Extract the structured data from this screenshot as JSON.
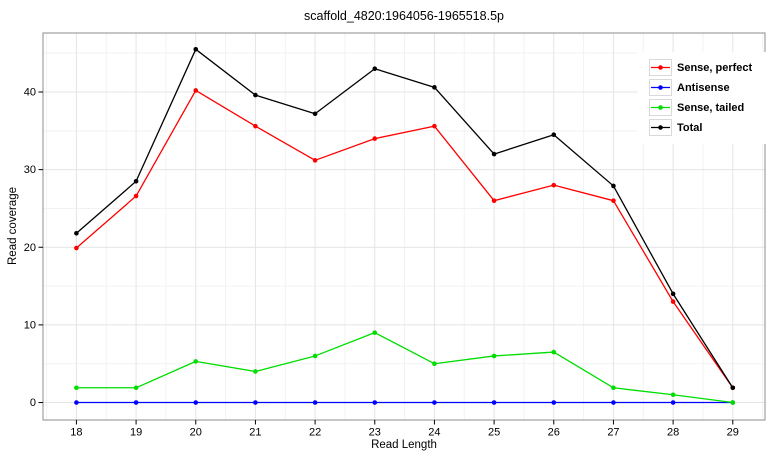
{
  "title": "scaffold_4820:1964056-1965518.5p",
  "axes": {
    "x_label": "Read Length",
    "y_label": "Read coverage",
    "x_tick_labels": [
      "18",
      "19",
      "20",
      "21",
      "22",
      "23",
      "24",
      "25",
      "26",
      "27",
      "28",
      "29"
    ],
    "y_tick_labels": [
      "0",
      "10",
      "20",
      "30",
      "40"
    ]
  },
  "colors": {
    "sense_perfect": "#ff0000",
    "antisense": "#0000ff",
    "sense_tailed": "#00dd00",
    "total": "#000000",
    "panel_border": "#8c8c8c",
    "grid_major": "#e4e4e4",
    "grid_minor": "#f2f2f2",
    "tick": "#000000"
  },
  "chart_data": {
    "type": "line",
    "title": "scaffold_4820:1964056-1965518.5p",
    "xlabel": "Read Length",
    "ylabel": "Read coverage",
    "x": [
      18,
      19,
      20,
      21,
      22,
      23,
      24,
      25,
      26,
      27,
      28,
      29
    ],
    "series": [
      {
        "name": "Sense, perfect",
        "color": "#ff0000",
        "values": [
          19.9,
          26.6,
          40.2,
          35.6,
          31.2,
          34.0,
          35.6,
          26.0,
          28.0,
          26.0,
          13.0,
          1.9
        ]
      },
      {
        "name": "Antisense",
        "color": "#0000ff",
        "values": [
          0,
          0,
          0,
          0,
          0,
          0,
          0,
          0,
          0,
          0,
          0,
          0
        ]
      },
      {
        "name": "Sense, tailed",
        "color": "#00dd00",
        "values": [
          1.9,
          1.9,
          5.3,
          4.0,
          6.0,
          9.0,
          5.0,
          6.0,
          6.5,
          1.9,
          1.0,
          0
        ]
      },
      {
        "name": "Total",
        "color": "#000000",
        "values": [
          21.8,
          28.5,
          45.5,
          39.6,
          37.2,
          43.0,
          40.6,
          32.0,
          34.5,
          27.9,
          14.0,
          1.9
        ]
      }
    ],
    "x_ticks_major": [
      18,
      19,
      20,
      21,
      22,
      23,
      24,
      25,
      26,
      27,
      28,
      29
    ],
    "x_ticks_minor": [
      17.5,
      18.5,
      19.5,
      20.5,
      21.5,
      22.5,
      23.5,
      24.5,
      25.5,
      26.5,
      27.5,
      28.5,
      29.5
    ],
    "y_ticks_major": [
      0,
      10,
      20,
      30,
      40
    ],
    "y_ticks_minor": [
      5,
      15,
      25,
      35,
      45
    ],
    "xlim": [
      17.44,
      29.54
    ],
    "ylim": [
      -2.25,
      47.6
    ],
    "grid": true,
    "legend_position": "top-right-inside"
  }
}
